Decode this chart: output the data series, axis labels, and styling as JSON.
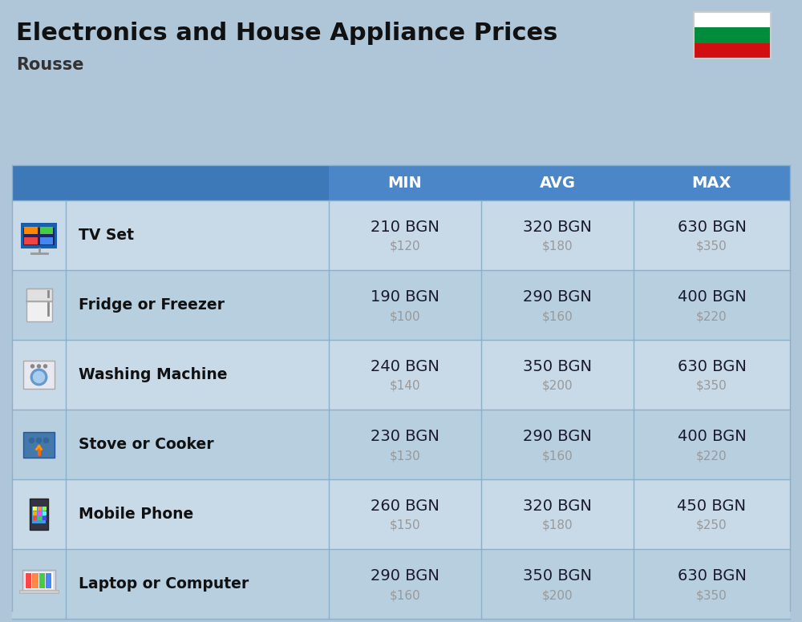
{
  "title": "Electronics and House Appliance Prices",
  "subtitle": "Rousse",
  "bg_color": "#aec6d8",
  "header_bg": "#4a86c8",
  "row_bg_light": "#c8d9e8",
  "row_bg_dark": "#b8cfe0",
  "col_divider": "#8ab0cc",
  "flag_colors": [
    "#ffffff",
    "#008c3a",
    "#d01010"
  ],
  "value_color": "#1a1a2e",
  "usd_color": "#999999",
  "name_color": "#111111",
  "items": [
    {
      "name": "TV Set",
      "min_bgn": "210 BGN",
      "min_usd": "$120",
      "avg_bgn": "320 BGN",
      "avg_usd": "$180",
      "max_bgn": "630 BGN",
      "max_usd": "$350"
    },
    {
      "name": "Fridge or Freezer",
      "min_bgn": "190 BGN",
      "min_usd": "$100",
      "avg_bgn": "290 BGN",
      "avg_usd": "$160",
      "max_bgn": "400 BGN",
      "max_usd": "$220"
    },
    {
      "name": "Washing Machine",
      "min_bgn": "240 BGN",
      "min_usd": "$140",
      "avg_bgn": "350 BGN",
      "avg_usd": "$200",
      "max_bgn": "630 BGN",
      "max_usd": "$350"
    },
    {
      "name": "Stove or Cooker",
      "min_bgn": "230 BGN",
      "min_usd": "$130",
      "avg_bgn": "290 BGN",
      "avg_usd": "$160",
      "max_bgn": "400 BGN",
      "max_usd": "$220"
    },
    {
      "name": "Mobile Phone",
      "min_bgn": "260 BGN",
      "min_usd": "$150",
      "avg_bgn": "320 BGN",
      "avg_usd": "$180",
      "max_bgn": "450 BGN",
      "max_usd": "$250"
    },
    {
      "name": "Laptop or Computer",
      "min_bgn": "290 BGN",
      "min_usd": "$160",
      "avg_bgn": "350 BGN",
      "avg_usd": "$200",
      "max_bgn": "630 BGN",
      "max_usd": "$350"
    }
  ],
  "icon_symbols": [
    "📺",
    "🛑",
    "🔄",
    "🔥",
    "📱",
    "💻"
  ]
}
